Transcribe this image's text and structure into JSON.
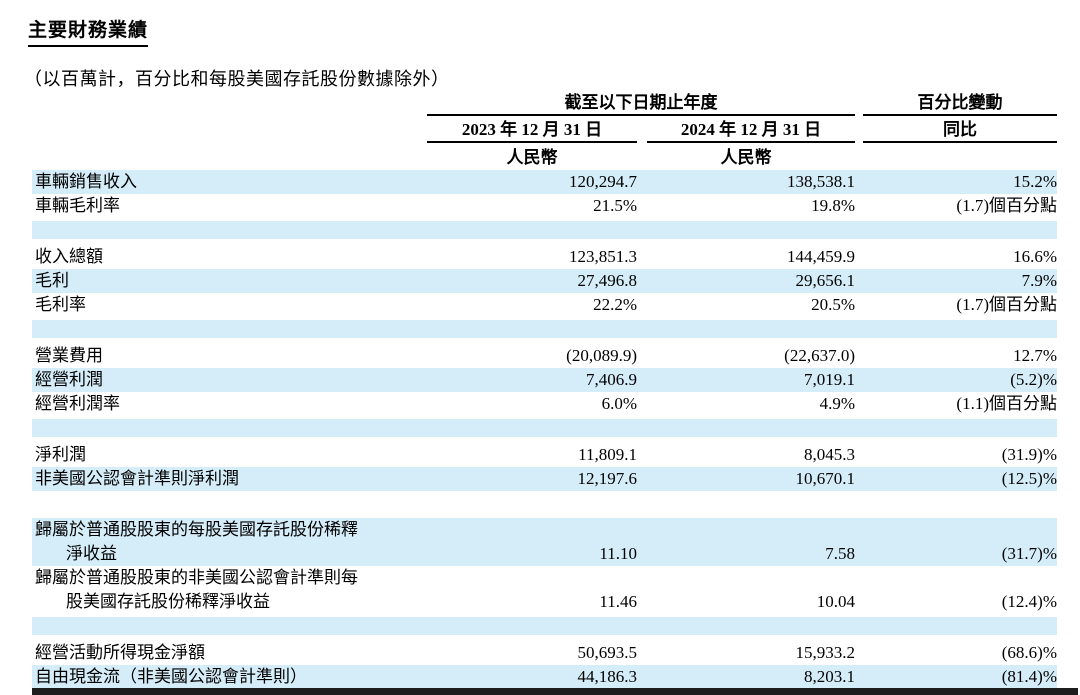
{
  "title": "主要財務業績",
  "subtitle": "（以百萬計，百分比和每股美國存託股份數據除外）",
  "header": {
    "period_group": "截至以下日期止年度",
    "pct_change_group": "百分比變動",
    "col_2023": "2023 年 12 月 31 日",
    "col_2024": "2024 年 12 月 31 日",
    "col_yoy": "同比",
    "currency_2023": "人民幣",
    "currency_2024": "人民幣"
  },
  "colors": {
    "row_highlight": "#d5edf9",
    "rule": "#000000",
    "bottom_bar": "#1d1d1d"
  },
  "rows": [
    {
      "type": "data",
      "bg": "blue",
      "label": "車輛銷售收入",
      "v2023": "120,294.7",
      "v2024": "138,538.1",
      "yoy": "15.2%"
    },
    {
      "type": "data",
      "bg": "white",
      "label": "車輛毛利率",
      "v2023": "21.5%",
      "v2024": "19.8%",
      "yoy": "(1.7)個百分點"
    },
    {
      "type": "sep",
      "bg": "blue"
    },
    {
      "type": "data",
      "bg": "white",
      "label": "收入總額",
      "v2023": "123,851.3",
      "v2024": "144,459.9",
      "yoy": "16.6%"
    },
    {
      "type": "data",
      "bg": "blue",
      "label": "毛利",
      "v2023": "27,496.8",
      "v2024": "29,656.1",
      "yoy": "7.9%"
    },
    {
      "type": "data",
      "bg": "white",
      "label": "毛利率",
      "v2023": "22.2%",
      "v2024": "20.5%",
      "yoy": "(1.7)個百分點"
    },
    {
      "type": "sep",
      "bg": "blue"
    },
    {
      "type": "data",
      "bg": "white",
      "label": "營業費用",
      "v2023": "(20,089.9)",
      "v2024": "(22,637.0)",
      "yoy": "12.7%"
    },
    {
      "type": "data",
      "bg": "blue",
      "label": "經營利潤",
      "v2023": "7,406.9",
      "v2024": "7,019.1",
      "yoy": "(5.2)%"
    },
    {
      "type": "data",
      "bg": "white",
      "label": "經營利潤率",
      "v2023": "6.0%",
      "v2024": "4.9%",
      "yoy": "(1.1)個百分點"
    },
    {
      "type": "sep",
      "bg": "blue"
    },
    {
      "type": "data",
      "bg": "white",
      "label": "淨利潤",
      "v2023": "11,809.1",
      "v2024": "8,045.3",
      "yoy": "(31.9)%"
    },
    {
      "type": "data",
      "bg": "blue",
      "label": "非美國公認會計準則淨利潤",
      "v2023": "12,197.6",
      "v2024": "10,670.1",
      "yoy": "(12.5)%"
    },
    {
      "type": "sep",
      "bg": "white"
    },
    {
      "type": "data2",
      "bg": "blue",
      "label_line1": "歸屬於普通股股東的每股美國存託股份稀釋",
      "label_line2": "淨收益",
      "v2023": "11.10",
      "v2024": "7.58",
      "yoy": "(31.7)%"
    },
    {
      "type": "data2",
      "bg": "white",
      "label_line1": "歸屬於普通股股東的非美國公認會計準則每",
      "label_line2": "股美國存託股份稀釋淨收益",
      "v2023": "11.46",
      "v2024": "10.04",
      "yoy": "(12.4)%"
    },
    {
      "type": "sep",
      "bg": "blue"
    },
    {
      "type": "data",
      "bg": "white",
      "label": "經營活動所得現金淨額",
      "v2023": "50,693.5",
      "v2024": "15,933.2",
      "yoy": "(68.6)%"
    },
    {
      "type": "data",
      "bg": "blue",
      "label": "自由現金流（非美國公認會計準則）",
      "v2023": "44,186.3",
      "v2024": "8,203.1",
      "yoy": "(81.4)%"
    }
  ]
}
